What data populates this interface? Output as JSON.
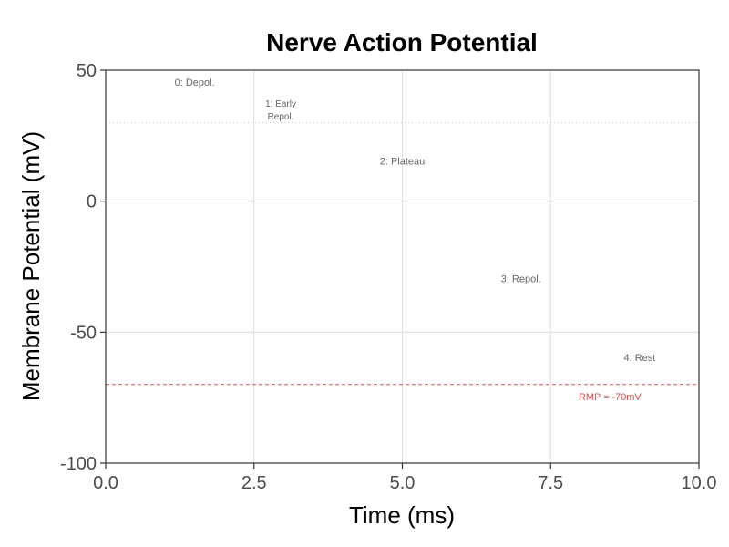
{
  "chart_data": {
    "type": "line",
    "title": "Nerve Action Potential",
    "xlabel": "Time (ms)",
    "ylabel": "Membrane Potential (mV)",
    "xlim": [
      0,
      10
    ],
    "ylim": [
      -100,
      50
    ],
    "x_ticks": [
      0,
      2.5,
      5,
      7.5,
      10
    ],
    "x_tick_labels": [
      "0.0",
      "2.5",
      "5.0",
      "7.5",
      "10.0"
    ],
    "y_ticks": [
      -100,
      -50,
      0,
      50
    ],
    "y_tick_labels": [
      "-100",
      "-50",
      "0",
      "50"
    ],
    "grid": true,
    "series": [],
    "reference_lines": [
      {
        "y": -70,
        "style": "dashed",
        "color": "#d9534f"
      },
      {
        "y": 30,
        "style": "dotted",
        "color": "#cccccc"
      }
    ],
    "annotations": [
      {
        "x": 1.5,
        "y": 44,
        "lines": [
          "0: Depol."
        ]
      },
      {
        "x": 2.95,
        "y": 36,
        "lines": [
          "1: Early",
          "Repol."
        ]
      },
      {
        "x": 5.0,
        "y": 14,
        "lines": [
          "2: Plateau"
        ]
      },
      {
        "x": 7.0,
        "y": -31,
        "lines": [
          "3: Repol."
        ]
      },
      {
        "x": 9.0,
        "y": -61,
        "lines": [
          "4: Rest"
        ]
      },
      {
        "x": 8.5,
        "y": -76,
        "lines": [
          "RMP ≈ -70mV"
        ],
        "color": "#d9534f"
      }
    ]
  }
}
